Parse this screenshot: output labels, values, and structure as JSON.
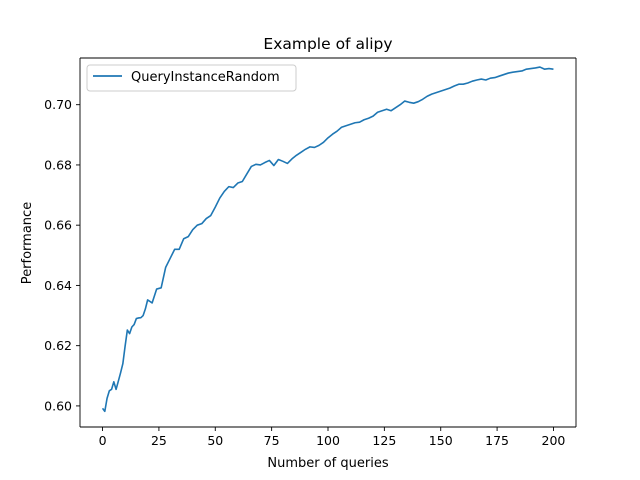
{
  "chart_data": {
    "type": "line",
    "title": "Example of alipy",
    "xlabel": "Number of queries",
    "ylabel": "Performance",
    "xlim": [
      -10,
      210
    ],
    "ylim": [
      0.593,
      0.7155
    ],
    "xticks": [
      0,
      25,
      50,
      75,
      100,
      125,
      150,
      175,
      200
    ],
    "yticks": [
      0.6,
      0.62,
      0.64,
      0.66,
      0.68,
      0.7
    ],
    "xtick_labels": [
      "0",
      "25",
      "50",
      "75",
      "100",
      "125",
      "150",
      "175",
      "200"
    ],
    "ytick_labels": [
      "0.60",
      "0.62",
      "0.64",
      "0.66",
      "0.68",
      "0.70"
    ],
    "grid": false,
    "legend_position": "upper-left",
    "series": [
      {
        "name": "QueryInstanceRandom",
        "color": "#1f77b4",
        "x": [
          0,
          1,
          2,
          3,
          4,
          5,
          6,
          7,
          8,
          9,
          10,
          11,
          12,
          13,
          14,
          15,
          16,
          17,
          18,
          19,
          20,
          22,
          24,
          26,
          28,
          30,
          32,
          34,
          36,
          38,
          40,
          42,
          44,
          46,
          48,
          50,
          52,
          54,
          56,
          58,
          60,
          62,
          64,
          66,
          68,
          70,
          72,
          74,
          76,
          78,
          80,
          82,
          84,
          86,
          88,
          90,
          92,
          94,
          96,
          98,
          100,
          102,
          104,
          106,
          108,
          110,
          112,
          114,
          116,
          118,
          120,
          122,
          124,
          126,
          128,
          130,
          132,
          134,
          136,
          138,
          140,
          142,
          144,
          146,
          148,
          150,
          152,
          154,
          156,
          158,
          160,
          162,
          164,
          166,
          168,
          170,
          172,
          174,
          176,
          178,
          180,
          182,
          184,
          186,
          188,
          190,
          192,
          194,
          196,
          198,
          200
        ],
        "y": [
          0.5992,
          0.5982,
          0.6025,
          0.605,
          0.6055,
          0.608,
          0.6055,
          0.6082,
          0.611,
          0.614,
          0.6198,
          0.6252,
          0.624,
          0.6262,
          0.627,
          0.629,
          0.6292,
          0.6293,
          0.63,
          0.6322,
          0.6352,
          0.6342,
          0.6388,
          0.6392,
          0.646,
          0.649,
          0.652,
          0.652,
          0.6555,
          0.6562,
          0.6585,
          0.66,
          0.6605,
          0.6622,
          0.6632,
          0.666,
          0.669,
          0.6712,
          0.6728,
          0.6725,
          0.674,
          0.6745,
          0.677,
          0.6795,
          0.6802,
          0.68,
          0.6808,
          0.6815,
          0.6798,
          0.6818,
          0.6812,
          0.6805,
          0.682,
          0.6832,
          0.6842,
          0.6852,
          0.686,
          0.6858,
          0.6865,
          0.6875,
          0.689,
          0.6902,
          0.6912,
          0.6925,
          0.693,
          0.6935,
          0.694,
          0.6942,
          0.695,
          0.6955,
          0.6962,
          0.6975,
          0.698,
          0.6985,
          0.698,
          0.699,
          0.7,
          0.7012,
          0.7008,
          0.7005,
          0.701,
          0.7018,
          0.7028,
          0.7035,
          0.704,
          0.7045,
          0.705,
          0.7055,
          0.7062,
          0.7068,
          0.7068,
          0.7072,
          0.7078,
          0.7082,
          0.7085,
          0.7082,
          0.7088,
          0.709,
          0.7095,
          0.71,
          0.7105,
          0.7108,
          0.711,
          0.7112,
          0.7118,
          0.712,
          0.7122,
          0.7125,
          0.7118,
          0.712,
          0.7118
        ]
      }
    ]
  }
}
